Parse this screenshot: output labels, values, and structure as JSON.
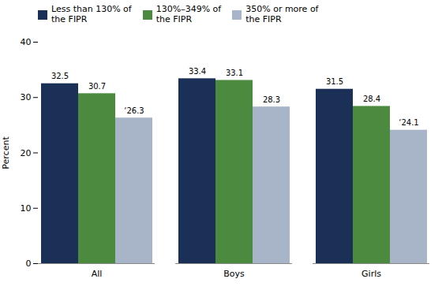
{
  "chart_data": {
    "type": "bar",
    "categories": [
      "All",
      "Boys",
      "Girls"
    ],
    "series": [
      {
        "name": "Less than 130% of\nthe FIPR",
        "color": "#1a3057",
        "values": [
          32.5,
          33.4,
          31.5
        ],
        "value_labels": [
          "32.5",
          "33.4",
          "31.5"
        ]
      },
      {
        "name": "130%–349% of\nthe FIPR",
        "color": "#4c8b3f",
        "values": [
          30.7,
          33.1,
          28.4
        ],
        "value_labels": [
          "30.7",
          "33.1",
          "28.4"
        ]
      },
      {
        "name": "350% or more of\nthe FIPR",
        "color": "#a8b4c8",
        "values": [
          26.3,
          28.3,
          24.1
        ],
        "value_labels": [
          "‘26.3",
          "28.3",
          "‘24.1"
        ]
      }
    ],
    "ylabel": "Percent",
    "ylim": [
      0,
      40
    ],
    "yticks": [
      0,
      10,
      20,
      30,
      40
    ],
    "grid": false,
    "legend": "upper left",
    "data_labels": true
  }
}
